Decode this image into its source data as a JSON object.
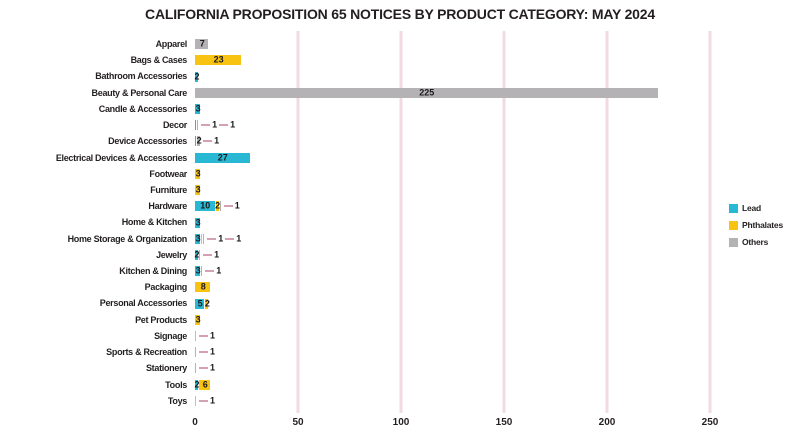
{
  "title": "CALIFORNIA PROPOSITION 65 NOTICES BY PRODUCT CATEGORY: MAY 2024",
  "colors": {
    "lead": "#29b8d4",
    "phthalates": "#f9c313",
    "others": "#b4b2b4",
    "gridline": "#f2dbe0",
    "leader": "#d4a0b4",
    "text": "#231f20"
  },
  "legend": {
    "position": "right",
    "items": [
      {
        "label": "Lead",
        "color_key": "lead"
      },
      {
        "label": "Phthalates",
        "color_key": "phthalates"
      },
      {
        "label": "Others",
        "color_key": "others"
      }
    ]
  },
  "chart_data": {
    "type": "bar",
    "orientation": "horizontal",
    "stacked": true,
    "title": "CALIFORNIA PROPOSITION 65 NOTICES BY PRODUCT CATEGORY: MAY 2024",
    "xlabel": "",
    "ylabel": "",
    "xlim": [
      0,
      272
    ],
    "xticks": [
      0,
      50,
      100,
      150,
      200,
      250
    ],
    "grid": true,
    "legend_position": "right",
    "categories": [
      "Apparel",
      "Bags & Cases",
      "Bathroom Accessories",
      "Beauty & Personal Care",
      "Candle & Accessories",
      "Decor",
      "Device Accessories",
      "Electrical Devices & Accessories",
      "Footwear",
      "Furniture",
      "Hardware",
      "Home & Kitchen",
      "Home Storage & Organization",
      "Jewelry",
      "Kitchen & Dining",
      "Packaging",
      "Personal Accessories",
      "Pet Products",
      "Signage",
      "Sports & Recreation",
      "Stationery",
      "Tools",
      "Toys"
    ],
    "series": [
      {
        "name": "Lead",
        "color_key": "lead",
        "values": [
          0,
          0,
          2,
          0,
          3,
          1,
          1,
          27,
          0,
          0,
          10,
          3,
          3,
          2,
          3,
          0,
          5,
          0,
          0,
          0,
          0,
          2,
          0
        ]
      },
      {
        "name": "Phthalates",
        "color_key": "phthalates",
        "values": [
          0,
          23,
          0,
          0,
          0,
          0,
          0,
          0,
          3,
          3,
          2,
          0,
          1,
          0,
          0,
          8,
          2,
          3,
          1,
          0,
          0,
          6,
          1
        ]
      },
      {
        "name": "Others",
        "color_key": "others",
        "values": [
          7,
          0,
          0,
          225,
          0,
          1,
          2,
          0,
          0,
          0,
          1,
          0,
          1,
          1,
          1,
          0,
          0,
          0,
          0,
          1,
          1,
          0,
          0
        ]
      }
    ]
  }
}
